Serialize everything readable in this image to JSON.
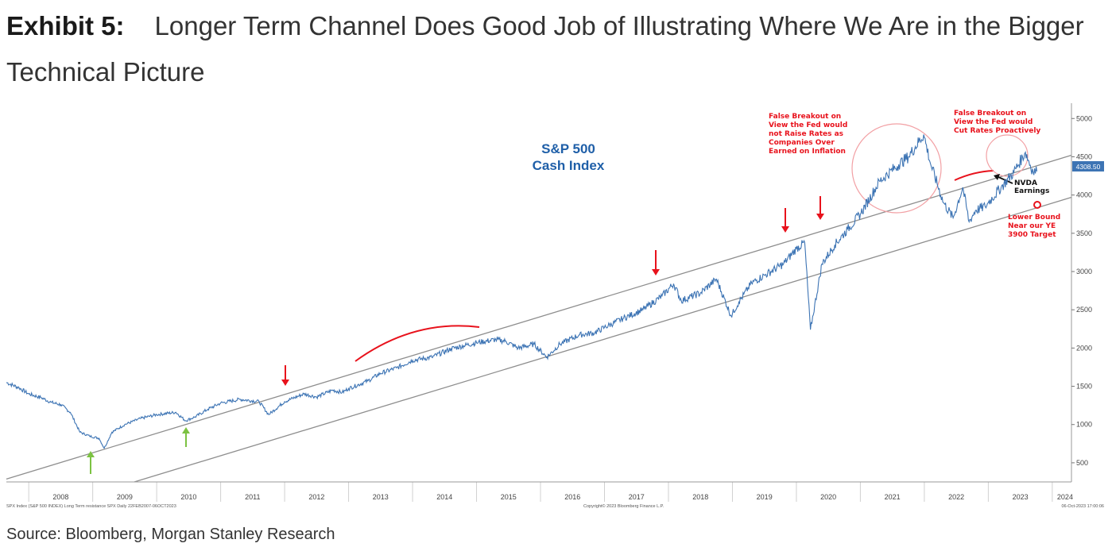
{
  "header": {
    "label": "Exhibit 5:",
    "title": "Longer Term Channel Does Good Job of Illustrating Where We Are in the Bigger Technical Picture"
  },
  "source": "Source: Bloomberg, Morgan Stanley Research",
  "chart_data": {
    "type": "line",
    "title": "S&P 500",
    "subtitle": "Cash Index",
    "x_ticks": [
      "2008",
      "2009",
      "2010",
      "2011",
      "2012",
      "2013",
      "2014",
      "2015",
      "2016",
      "2017",
      "2018",
      "2019",
      "2020",
      "2021",
      "2022",
      "2023",
      "2024"
    ],
    "y_ticks": [
      "500",
      "1000",
      "1500",
      "2000",
      "2500",
      "3000",
      "3500",
      "4000",
      "4500",
      "5000"
    ],
    "xlim": [
      2007.65,
      2024.3
    ],
    "ylim": [
      250,
      5200
    ],
    "last_value_label": "4308.50",
    "series": [
      {
        "x": [
          2007.65,
          2007.85,
          2008.0,
          2008.2,
          2008.35,
          2008.5,
          2008.65,
          2008.8,
          2008.95,
          2009.1,
          2009.18,
          2009.3,
          2009.5,
          2009.75,
          2010.0,
          2010.3,
          2010.45,
          2010.6,
          2010.8,
          2011.0,
          2011.3,
          2011.6,
          2011.75,
          2012.0,
          2012.3,
          2012.5,
          2012.75,
          2012.9,
          2013.0,
          2013.3,
          2013.5,
          2013.75,
          2014.0,
          2014.3,
          2014.6,
          2014.8,
          2015.0,
          2015.3,
          2015.45,
          2015.65,
          2015.9,
          2016.1,
          2016.3,
          2016.6,
          2016.85,
          2017.0,
          2017.3,
          2017.6,
          2017.9,
          2018.08,
          2018.2,
          2018.5,
          2018.75,
          2018.98,
          2019.1,
          2019.3,
          2019.5,
          2019.8,
          2020.0,
          2020.13,
          2020.22,
          2020.4,
          2020.6,
          2020.8,
          2021.0,
          2021.3,
          2021.6,
          2021.75,
          2021.99,
          2022.1,
          2022.3,
          2022.45,
          2022.6,
          2022.7,
          2022.8,
          2022.95,
          2023.0,
          2023.2,
          2023.4,
          2023.58,
          2023.7,
          2023.76
        ],
        "y": [
          1550,
          1480,
          1400,
          1350,
          1290,
          1260,
          1160,
          900,
          850,
          820,
          690,
          900,
          1000,
          1080,
          1130,
          1160,
          1050,
          1100,
          1200,
          1280,
          1330,
          1300,
          1130,
          1300,
          1400,
          1360,
          1450,
          1420,
          1470,
          1570,
          1670,
          1740,
          1840,
          1880,
          1990,
          2030,
          2070,
          2110,
          2090,
          2000,
          2050,
          1880,
          2050,
          2170,
          2200,
          2270,
          2390,
          2500,
          2680,
          2840,
          2620,
          2720,
          2900,
          2420,
          2600,
          2850,
          2950,
          3100,
          3300,
          3380,
          2240,
          3100,
          3350,
          3550,
          3750,
          4180,
          4400,
          4500,
          4790,
          4400,
          3900,
          3700,
          4100,
          3650,
          3800,
          3850,
          3900,
          4100,
          4300,
          4560,
          4300,
          4309
        ]
      }
    ],
    "channel": [
      {
        "x": [
          2007.65,
          2024.3
        ],
        "y": [
          288,
          4520
        ]
      },
      {
        "x": [
          2009.65,
          2024.3
        ],
        "y": [
          250,
          3970
        ]
      }
    ],
    "annotations": [
      {
        "text": [
          "False Breakout on",
          "View the Fed would",
          "not Raise Rates as",
          "Companies Over",
          "Earned on Inflation"
        ],
        "color": "#e8121c"
      },
      {
        "text": [
          "False Breakout on",
          "View the Fed would",
          "Cut Rates Proactively"
        ],
        "color": "#e8121c"
      },
      {
        "text": [
          "NVDA",
          "Earnings"
        ],
        "color": "#111111"
      },
      {
        "text": [
          "Lower Bound",
          "Near our YE",
          "3900 Target"
        ],
        "color": "#e8121c"
      }
    ],
    "footer_left": "SPX Index (S&P 500 INDEX) Long Term resistance SPX  Daily 22FEB2007-06OCT2023",
    "footer_center": "Copyright© 2023 Bloomberg Finance L.P.",
    "footer_right": "06-Oct-2023 17:00:06",
    "colors": {
      "series": "#3d74b4",
      "channel": "#8e8e8e",
      "annotation": "#e8121c",
      "up_arrow": "#7cc242",
      "title": "#1f5fa8"
    }
  }
}
